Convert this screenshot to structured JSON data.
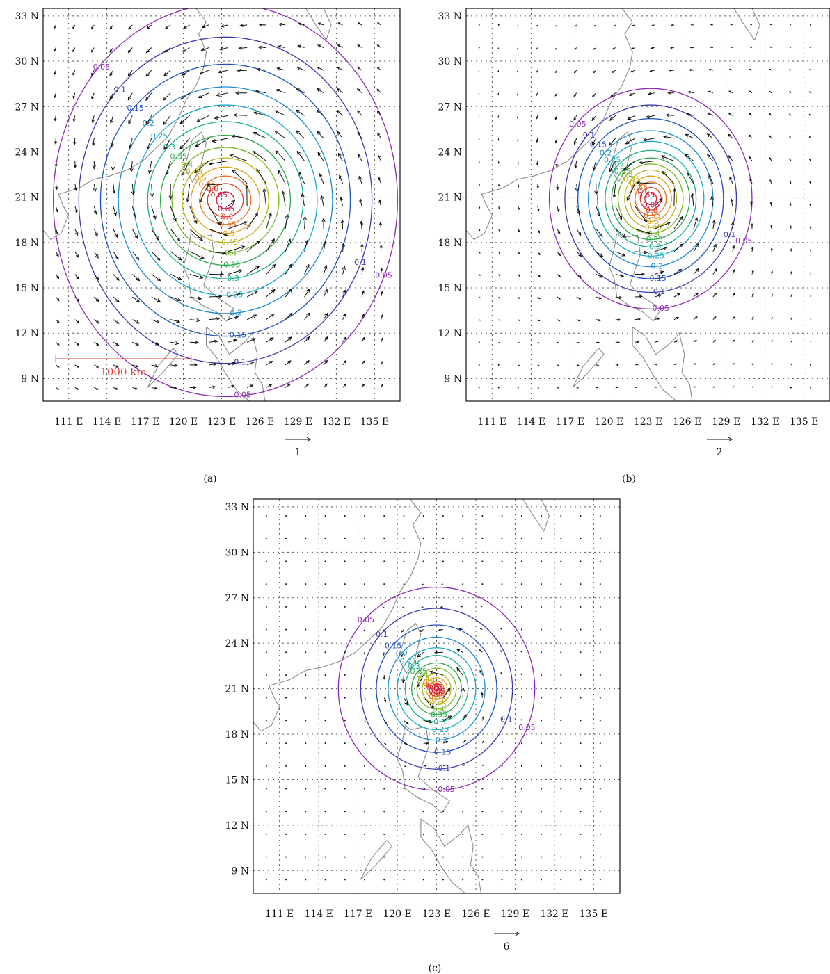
{
  "chart_data": [
    {
      "type": "contour",
      "panel_label": "(a)",
      "xlim": [
        109,
        137
      ],
      "ylim": [
        7.5,
        33.5
      ],
      "x_ticks": [
        "111 E",
        "114 E",
        "117 E",
        "120 E",
        "123 E",
        "126 E",
        "129 E",
        "132 E",
        "135 E"
      ],
      "y_ticks": [
        "9 N",
        "12 N",
        "15 N",
        "18 N",
        "21 N",
        "24 N",
        "27 N",
        "30 N",
        "33 N"
      ],
      "x_tick_values": [
        111,
        114,
        117,
        120,
        123,
        126,
        129,
        132,
        135
      ],
      "y_tick_values": [
        9,
        12,
        15,
        18,
        21,
        24,
        27,
        30,
        33
      ],
      "grid": true,
      "center": [
        123.3,
        20.8
      ],
      "contour_levels": [
        "0.05",
        "0.1",
        "0.15",
        "0.2",
        "0.25",
        "0.3",
        "0.35",
        "0.4",
        "0.45",
        "0.5",
        "0.55",
        "0.6",
        "0.65"
      ],
      "contour_radius_x": [
        13.5,
        11.5,
        9.8,
        8.4,
        7.2,
        6.1,
        5.1,
        4.2,
        3.4,
        2.7,
        2.0,
        1.4,
        0.7
      ],
      "contour_radius_y": [
        13.0,
        10.8,
        9.0,
        7.5,
        6.3,
        5.2,
        4.3,
        3.5,
        2.8,
        2.2,
        1.6,
        1.1,
        0.55
      ],
      "vector_scale_label": "1",
      "vector_max": 1.0,
      "vector_decay": 9,
      "scale_bar_label": "1000 km",
      "scale_bar_x": [
        110,
        120.6
      ],
      "scale_bar_y": 10.3
    },
    {
      "type": "contour",
      "panel_label": "(b)",
      "xlim": [
        109,
        137
      ],
      "ylim": [
        7.5,
        33.5
      ],
      "x_ticks": [
        "111 E",
        "114 E",
        "117 E",
        "120 E",
        "123 E",
        "126 E",
        "129 E",
        "132 E",
        "135 E"
      ],
      "y_ticks": [
        "9 N",
        "12 N",
        "15 N",
        "18 N",
        "21 N",
        "24 N",
        "27 N",
        "30 N",
        "33 N"
      ],
      "x_tick_values": [
        111,
        114,
        117,
        120,
        123,
        126,
        129,
        132,
        135
      ],
      "y_tick_values": [
        9,
        12,
        15,
        18,
        21,
        24,
        27,
        30,
        33
      ],
      "grid": true,
      "center": [
        123.2,
        20.9
      ],
      "contour_levels": [
        "0.05",
        "0.1",
        "0.15",
        "0.2",
        "0.25",
        "0.3",
        "0.35",
        "0.4",
        "0.45",
        "0.5",
        "0.55",
        "0.6",
        "0.65"
      ],
      "contour_radius_x": [
        7.8,
        6.6,
        5.6,
        4.8,
        4.1,
        3.5,
        3.0,
        2.5,
        2.0,
        1.6,
        1.2,
        0.8,
        0.45
      ],
      "contour_radius_y": [
        7.3,
        6.2,
        5.3,
        4.5,
        3.8,
        3.2,
        2.7,
        2.3,
        1.9,
        1.5,
        1.1,
        0.75,
        0.4
      ],
      "vector_scale_label": "2",
      "vector_max": 1.6,
      "vector_decay": 5
    },
    {
      "type": "contour",
      "panel_label": "(c)",
      "xlim": [
        109,
        137
      ],
      "ylim": [
        7.5,
        33.5
      ],
      "x_ticks": [
        "111 E",
        "114 E",
        "117 E",
        "120 E",
        "123 E",
        "126 E",
        "129 E",
        "132 E",
        "135 E"
      ],
      "y_ticks": [
        "9 N",
        "12 N",
        "15 N",
        "18 N",
        "21 N",
        "24 N",
        "27 N",
        "30 N",
        "33 N"
      ],
      "x_tick_values": [
        111,
        114,
        117,
        120,
        123,
        126,
        129,
        132,
        135
      ],
      "y_tick_values": [
        9,
        12,
        15,
        18,
        21,
        24,
        27,
        30,
        33
      ],
      "grid": true,
      "center": [
        123.0,
        21.0
      ],
      "contour_levels": [
        "0.05",
        "0.1",
        "0.15",
        "0.2",
        "0.25",
        "0.3",
        "0.35",
        "0.4",
        "0.45",
        "0.5",
        "0.55",
        "0.6",
        "0.65"
      ],
      "contour_radius_x": [
        7.5,
        5.8,
        4.6,
        3.7,
        3.0,
        2.4,
        1.9,
        1.5,
        1.1,
        0.8,
        0.55,
        0.35,
        0.18
      ],
      "contour_radius_y": [
        6.7,
        5.3,
        4.2,
        3.4,
        2.7,
        2.2,
        1.7,
        1.35,
        1.0,
        0.72,
        0.5,
        0.32,
        0.16
      ],
      "vector_scale_label": "6",
      "vector_max": 4.5,
      "vector_decay": 2.2
    }
  ],
  "colors": {
    "contours": [
      "#8a2bb5",
      "#3b3bb0",
      "#1f4fc0",
      "#1c8ad0",
      "#14a8c8",
      "#16b08a",
      "#2aa84a",
      "#7ab828",
      "#b8b21a",
      "#e0a018",
      "#e8701e",
      "#e23a28",
      "#d41840"
    ],
    "coast": "#8a8a8a",
    "grid": "#555555",
    "scale_bar": "#e04040",
    "vectors": "#111111"
  }
}
